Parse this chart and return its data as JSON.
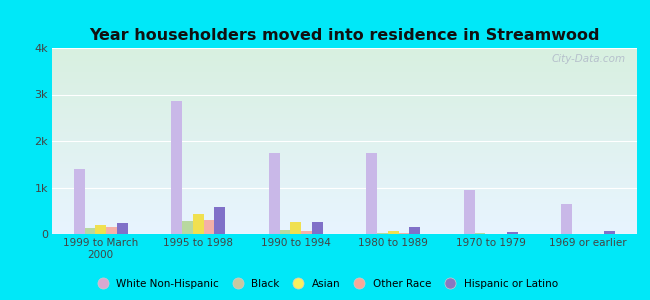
{
  "title": "Year householders moved into residence in Streamwood",
  "categories": [
    "1999 to March\n2000",
    "1995 to 1998",
    "1990 to 1994",
    "1980 to 1989",
    "1970 to 1979",
    "1969 or earlier"
  ],
  "series": {
    "White Non-Hispanic": [
      1400,
      2850,
      1750,
      1750,
      950,
      650
    ],
    "Black": [
      130,
      270,
      90,
      30,
      15,
      10
    ],
    "Asian": [
      200,
      430,
      250,
      55,
      10,
      10
    ],
    "Other Race": [
      160,
      310,
      70,
      20,
      10,
      10
    ],
    "Hispanic or Latino": [
      240,
      580,
      250,
      160,
      45,
      65
    ]
  },
  "colors": {
    "White Non-Hispanic": "#c9b8e8",
    "Black": "#b8d8a0",
    "Asian": "#f0e050",
    "Other Race": "#f4b0a8",
    "Hispanic or Latino": "#8070c8"
  },
  "legend_colors": {
    "White Non-Hispanic": "#d8a8d0",
    "Black": "#c8c8a0",
    "Asian": "#f8f060",
    "Other Race": "#f8a898",
    "Hispanic or Latino": "#8878c0"
  },
  "ylim": [
    0,
    4000
  ],
  "yticks": [
    0,
    1000,
    2000,
    3000,
    4000
  ],
  "ytick_labels": [
    "0",
    "1k",
    "2k",
    "3k",
    "4k"
  ],
  "bg_outer": "#00e8f8",
  "bg_plot_top": "#d8f0e0",
  "bg_plot_bottom": "#e8f4ff",
  "watermark": "City-Data.com"
}
